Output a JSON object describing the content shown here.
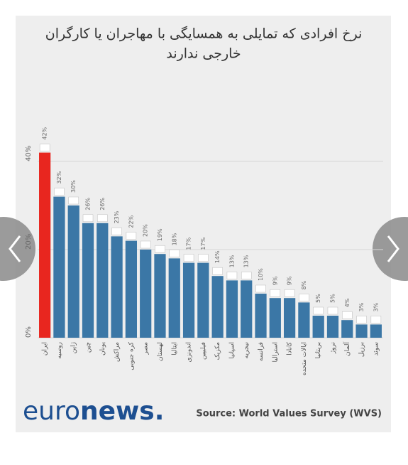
{
  "chart_data": {
    "type": "bar",
    "title": [
      "نرخ افرادی که تمایلی به همسایگی با مهاجران یا کارگران",
      "خارجی ندارند"
    ],
    "categories": [
      "ایران",
      "روسیه",
      "ژاپن",
      "چین",
      "یونان",
      "مراکش",
      "کره جنوبی",
      "مصر",
      "لهستان",
      "ایتالیا",
      "اندونزی",
      "فیلیپین",
      "مکزیک",
      "اسپانیا",
      "نیجریه",
      "فرانسه",
      "استرالیا",
      "کانادا",
      "ایالات متحده",
      "بریتانیا",
      "نروژ",
      "آلمان",
      "برزیل",
      "سوئد"
    ],
    "values": [
      42,
      32,
      30,
      26,
      26,
      23,
      22,
      20,
      19,
      18,
      17,
      17,
      14,
      13,
      13,
      10,
      9,
      9,
      8,
      5,
      5,
      4,
      3,
      3
    ],
    "value_labels": [
      "42%",
      "32%",
      "30%",
      "26%",
      "26%",
      "23%",
      "22%",
      "20%",
      "19%",
      "18%",
      "17%",
      "17%",
      "14%",
      "13%",
      "13%",
      "10%",
      "9%",
      "9%",
      "8%",
      "5%",
      "5%",
      "4%",
      "3%",
      "3%"
    ],
    "colors": [
      "#e8261f",
      "#3b77a6",
      "#3b77a6",
      "#3b77a6",
      "#3b77a6",
      "#3b77a6",
      "#3b77a6",
      "#3b77a6",
      "#3b77a6",
      "#3b77a6",
      "#3b77a6",
      "#3b77a6",
      "#3b77a6",
      "#3b77a6",
      "#3b77a6",
      "#3b77a6",
      "#3b77a6",
      "#3b77a6",
      "#3b77a6",
      "#3b77a6",
      "#3b77a6",
      "#3b77a6",
      "#3b77a6",
      "#3b77a6"
    ],
    "ylim": [
      0,
      45
    ],
    "yticks": [
      {
        "value": 0,
        "label": "0%"
      },
      {
        "value": 20,
        "label": "20%"
      },
      {
        "value": 40,
        "label": "40%"
      }
    ],
    "grid": true,
    "logo": [
      "euro",
      "news."
    ],
    "source": "Source: World Values Survey (WVS)"
  }
}
